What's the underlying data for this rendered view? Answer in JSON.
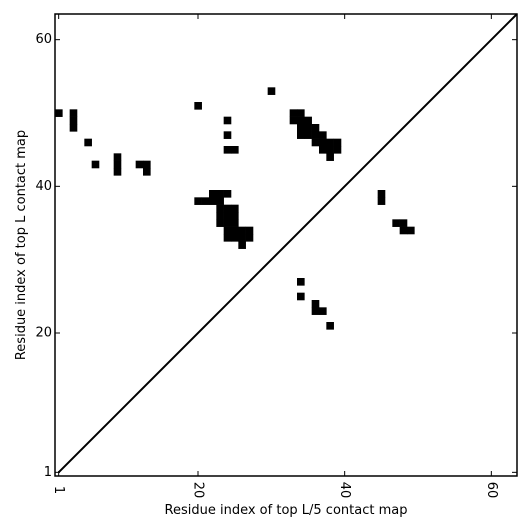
{
  "chart_data": {
    "type": "heatmap",
    "title": "",
    "xlabel": "Residue index of top L/5 contact map",
    "ylabel": "Residue index of top L contact map",
    "xlim": [
      0.5,
      63.5
    ],
    "ylim": [
      0.5,
      63.5
    ],
    "x_ticks": [
      1,
      20,
      40,
      60
    ],
    "y_ticks": [
      1,
      20,
      40,
      60
    ],
    "diagonal": true,
    "upper_triangle_cells": [
      [
        1,
        50
      ],
      [
        3,
        48
      ],
      [
        3,
        49
      ],
      [
        3,
        50
      ],
      [
        5,
        46
      ],
      [
        6,
        43
      ],
      [
        9,
        42
      ],
      [
        9,
        43
      ],
      [
        9,
        44
      ],
      [
        12,
        43
      ],
      [
        13,
        42
      ],
      [
        13,
        43
      ],
      [
        20,
        38
      ],
      [
        20,
        51
      ],
      [
        21,
        38
      ],
      [
        22,
        38
      ],
      [
        22,
        39
      ],
      [
        23,
        35
      ],
      [
        23,
        36
      ],
      [
        23,
        37
      ],
      [
        23,
        38
      ],
      [
        23,
        39
      ],
      [
        24,
        33
      ],
      [
        24,
        34
      ],
      [
        24,
        35
      ],
      [
        24,
        36
      ],
      [
        24,
        37
      ],
      [
        24,
        39
      ],
      [
        24,
        45
      ],
      [
        24,
        47
      ],
      [
        24,
        49
      ],
      [
        25,
        33
      ],
      [
        25,
        34
      ],
      [
        25,
        35
      ],
      [
        25,
        36
      ],
      [
        25,
        37
      ],
      [
        25,
        45
      ],
      [
        26,
        32
      ],
      [
        26,
        33
      ],
      [
        26,
        34
      ],
      [
        27,
        33
      ],
      [
        27,
        34
      ],
      [
        30,
        53
      ],
      [
        33,
        49
      ],
      [
        33,
        50
      ],
      [
        34,
        47
      ],
      [
        34,
        48
      ],
      [
        34,
        49
      ],
      [
        34,
        50
      ],
      [
        35,
        47
      ],
      [
        35,
        48
      ],
      [
        35,
        49
      ],
      [
        36,
        46
      ],
      [
        36,
        47
      ],
      [
        36,
        48
      ],
      [
        37,
        45
      ],
      [
        37,
        46
      ],
      [
        37,
        47
      ],
      [
        38,
        44
      ],
      [
        38,
        45
      ],
      [
        38,
        46
      ],
      [
        39,
        45
      ],
      [
        39,
        46
      ]
    ],
    "lower_triangle_cells": [
      [
        34,
        25
      ],
      [
        34,
        27
      ],
      [
        36,
        23
      ],
      [
        36,
        24
      ],
      [
        37,
        23
      ],
      [
        38,
        21
      ],
      [
        45,
        38
      ],
      [
        45,
        39
      ],
      [
        47,
        35
      ],
      [
        48,
        34
      ],
      [
        48,
        35
      ],
      [
        49,
        34
      ]
    ]
  }
}
